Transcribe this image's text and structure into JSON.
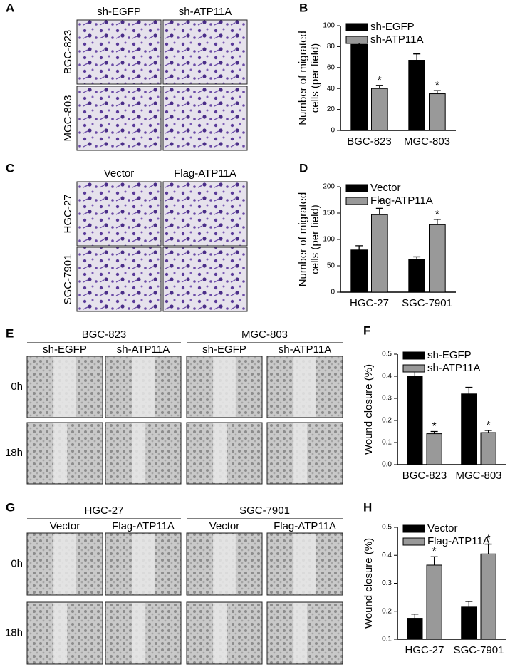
{
  "image_panels": [
    {
      "letter": "A",
      "columns": [
        "sh-EGFP",
        "sh-ATP11A"
      ],
      "rows": [
        "BGC-823",
        "MGC-803"
      ]
    },
    {
      "letter": "C",
      "columns": [
        "Vector",
        "Flag-ATP11A"
      ],
      "rows": [
        "HGC-27",
        "SGC-7901"
      ]
    },
    {
      "letter": "E",
      "groups": [
        "BGC-823",
        "MGC-803"
      ],
      "columns": [
        "sh-EGFP",
        "sh-ATP11A",
        "sh-EGFP",
        "sh-ATP11A"
      ],
      "rows": [
        "0h",
        "18h"
      ]
    },
    {
      "letter": "G",
      "groups": [
        "HGC-27",
        "SGC-7901"
      ],
      "columns": [
        "Vector",
        "Flag-ATP11A",
        "Vector",
        "Flag-ATP11A"
      ],
      "rows": [
        "0h",
        "18h"
      ]
    }
  ],
  "chart_data": [
    {
      "type": "bar",
      "panel_label": "B",
      "ylabel": [
        "Number of migrated",
        "cells (per field)"
      ],
      "categories": [
        "BGC-823",
        "MGC-803"
      ],
      "series": [
        {
          "name": "sh-EGFP",
          "color": "#000000",
          "values": [
            82,
            67
          ],
          "errors": [
            8,
            6
          ]
        },
        {
          "name": "sh-ATP11A",
          "color": "#999999",
          "values": [
            40,
            35
          ],
          "errors": [
            3,
            3
          ],
          "annotations": [
            "*",
            "*"
          ]
        }
      ],
      "ylim": [
        0,
        100
      ],
      "yticks": [
        0,
        20,
        40,
        60,
        80,
        100
      ]
    },
    {
      "type": "bar",
      "panel_label": "D",
      "ylabel": [
        "Number of migrated",
        "cells (per field)"
      ],
      "categories": [
        "HGC-27",
        "SGC-7901"
      ],
      "series": [
        {
          "name": "Vector",
          "color": "#000000",
          "values": [
            80,
            62
          ],
          "errors": [
            8,
            5
          ]
        },
        {
          "name": "Flag-ATP11A",
          "color": "#999999",
          "values": [
            147,
            128
          ],
          "errors": [
            12,
            10
          ],
          "annotations": [
            "*",
            "*"
          ]
        }
      ],
      "ylim": [
        0,
        200
      ],
      "yticks": [
        0,
        50,
        100,
        150,
        200
      ]
    },
    {
      "type": "bar",
      "panel_label": "F",
      "ylabel": [
        "Wound closure (%)"
      ],
      "categories": [
        "BGC-823",
        "MGC-803"
      ],
      "series": [
        {
          "name": "sh-EGFP",
          "color": "#000000",
          "values": [
            0.4,
            0.32
          ],
          "errors": [
            0.04,
            0.03
          ]
        },
        {
          "name": "sh-ATP11A",
          "color": "#999999",
          "values": [
            0.14,
            0.145
          ],
          "errors": [
            0.01,
            0.01
          ],
          "annotations": [
            "*",
            "*"
          ]
        }
      ],
      "ylim": [
        0,
        0.5
      ],
      "yticks": [
        {
          "value": 0,
          "label": "0.0"
        },
        0.1,
        0.2,
        0.3,
        0.4,
        0.5
      ]
    },
    {
      "type": "bar",
      "panel_label": "H",
      "ylabel": [
        "Wound closure (%)"
      ],
      "categories": [
        "HGC-27",
        "SGC-7901"
      ],
      "series": [
        {
          "name": "Vector",
          "color": "#000000",
          "values": [
            0.175,
            0.215
          ],
          "errors": [
            0.015,
            0.02
          ]
        },
        {
          "name": "Flag-ATP11A",
          "color": "#999999",
          "values": [
            0.365,
            0.405
          ],
          "errors": [
            0.03,
            0.035
          ],
          "annotations": [
            "*",
            "*"
          ]
        }
      ],
      "ylim": [
        0.1,
        0.5
      ],
      "yticks": [
        0.1,
        0.2,
        0.3,
        0.4,
        0.5
      ]
    }
  ]
}
